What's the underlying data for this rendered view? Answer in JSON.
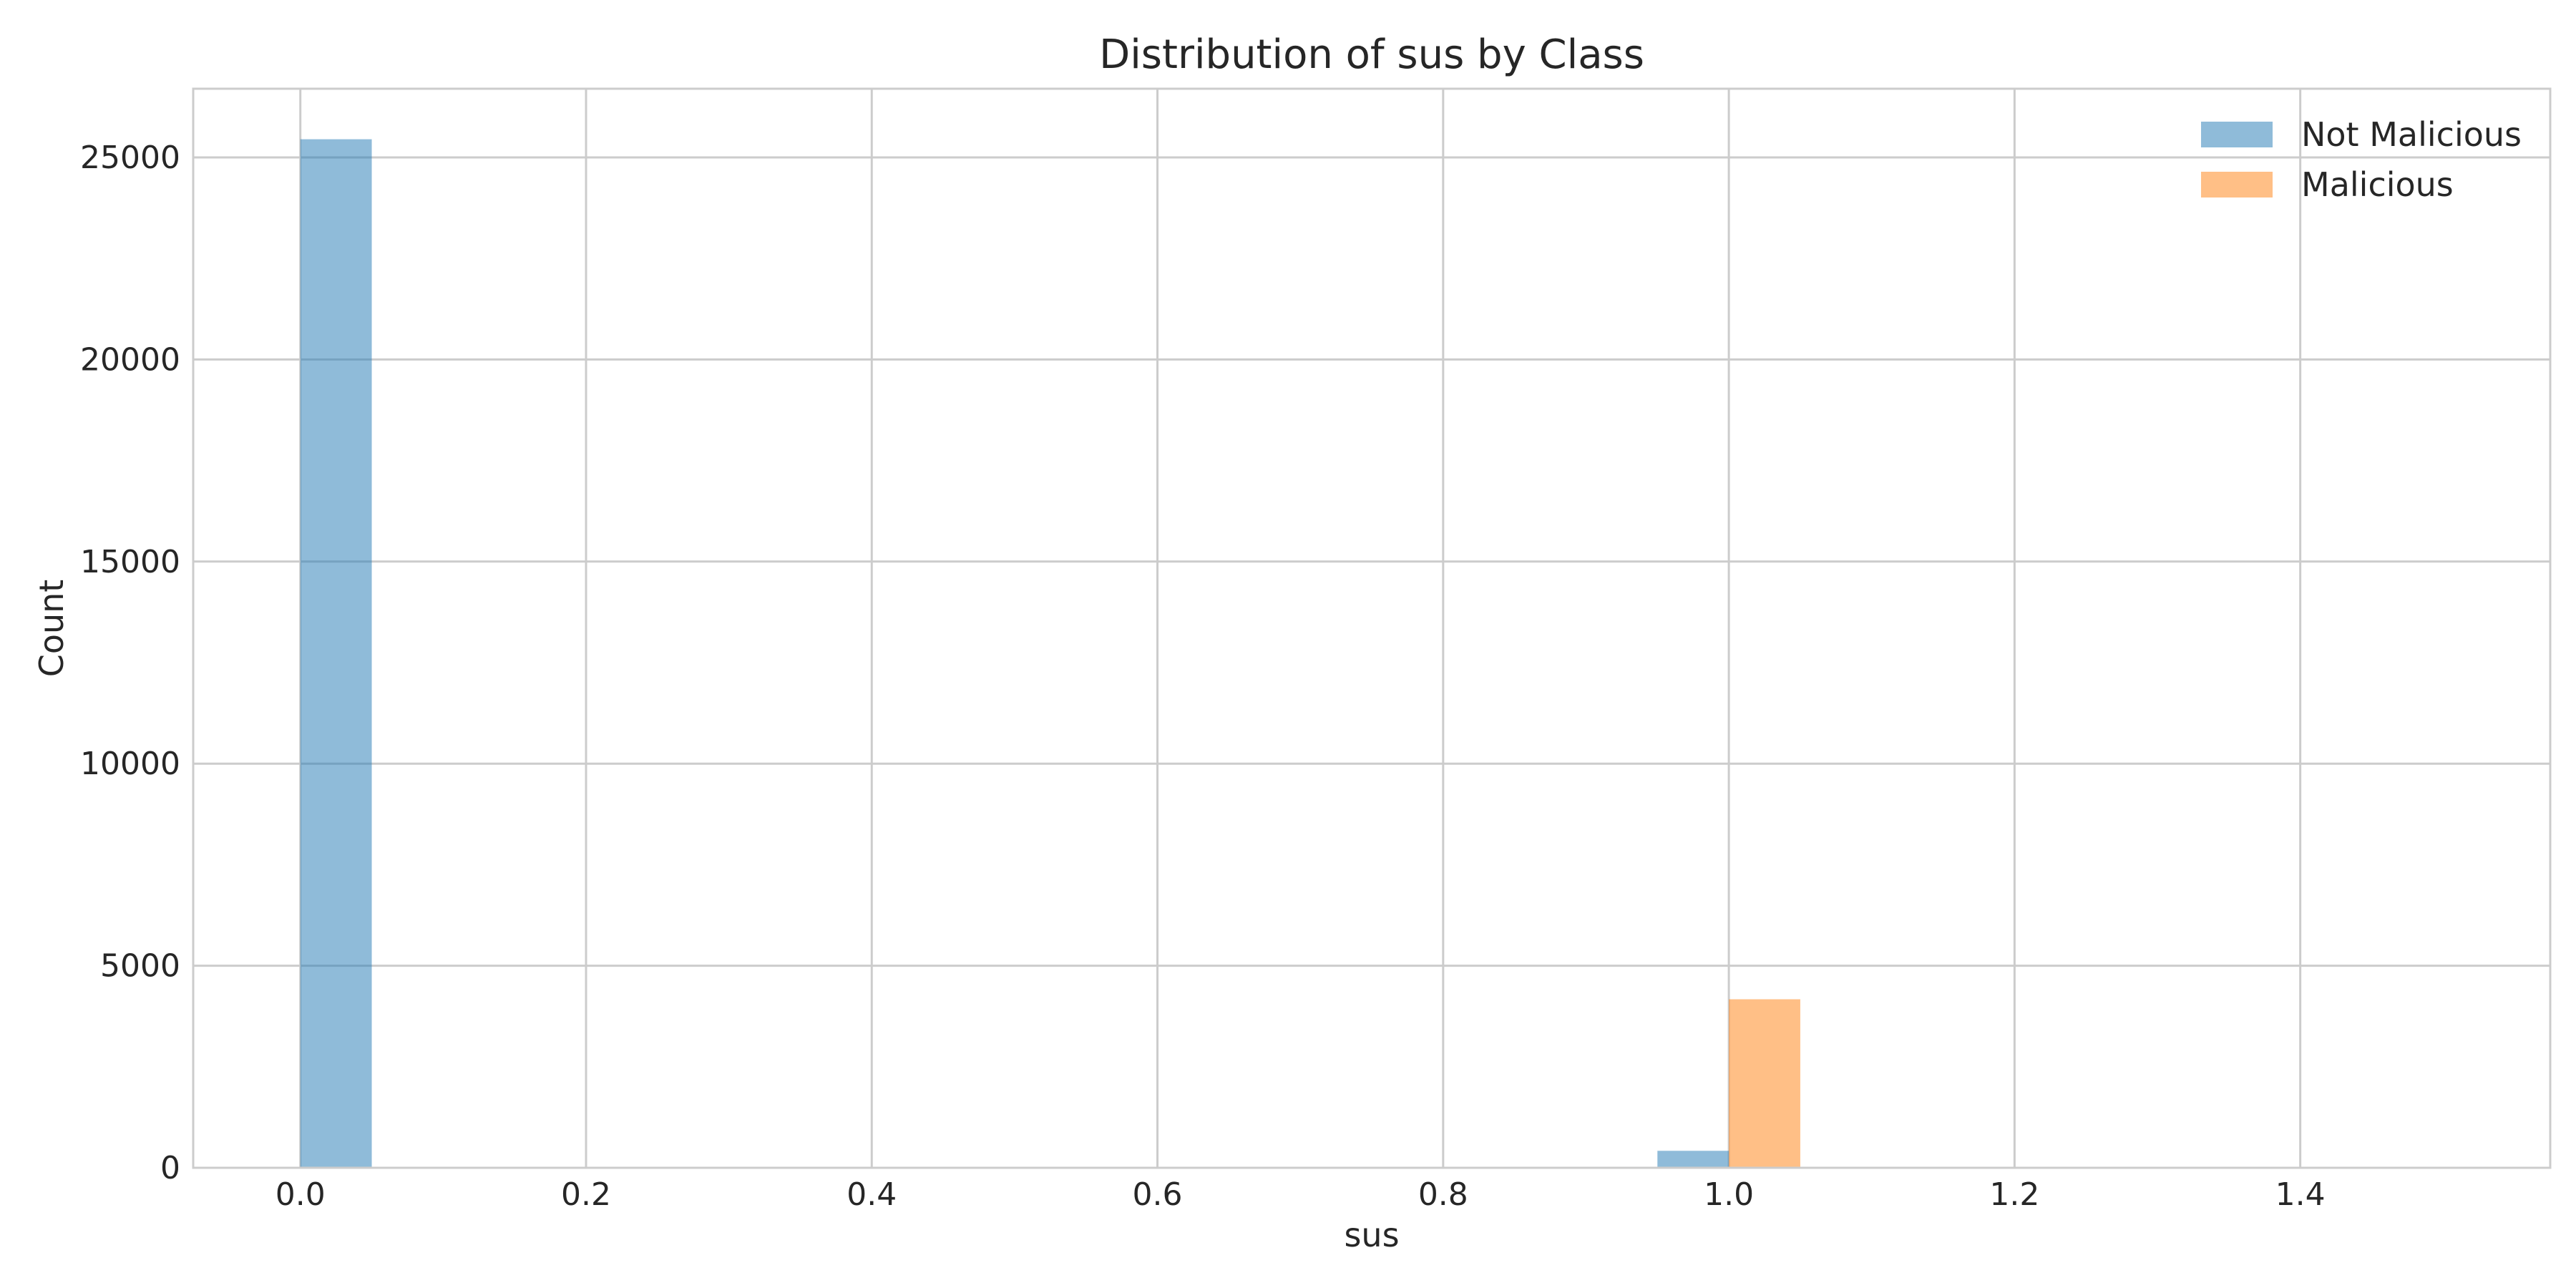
{
  "chart_data": {
    "type": "bar",
    "title": "Distribution of sus by Class",
    "xlabel": "sus",
    "ylabel": "Count",
    "xlim": [
      -0.075,
      1.575
    ],
    "ylim": [
      0,
      26700
    ],
    "xticks": [
      0.0,
      0.2,
      0.4,
      0.6,
      0.8,
      1.0,
      1.2,
      1.4
    ],
    "xtick_labels": [
      "0.0",
      "0.2",
      "0.4",
      "0.6",
      "0.8",
      "1.0",
      "1.2",
      "1.4"
    ],
    "yticks": [
      0,
      5000,
      10000,
      15000,
      20000,
      25000
    ],
    "ytick_labels": [
      "0",
      "5000",
      "10000",
      "15000",
      "20000",
      "25000"
    ],
    "grid": true,
    "legend_position": "top-right",
    "bin_width": 0.05,
    "series": [
      {
        "name": "Not Malicious",
        "color": "#1f77b4",
        "alpha": 0.5,
        "bins": [
          {
            "start": 0.0,
            "count": 25450
          },
          {
            "start": 0.95,
            "count": 420
          }
        ]
      },
      {
        "name": "Malicious",
        "color": "#ff7f0e",
        "alpha": 0.5,
        "bins": [
          {
            "start": 1.0,
            "count": 4170
          }
        ]
      }
    ]
  }
}
